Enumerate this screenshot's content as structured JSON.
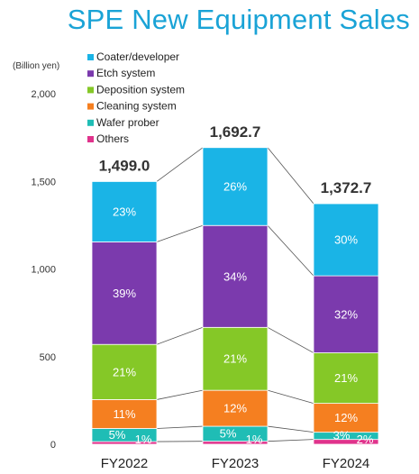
{
  "title": "SPE New Equipment Sales",
  "unit_label": "(Billion yen)",
  "chart_data": {
    "type": "bar",
    "stacked": true,
    "title": "SPE New Equipment Sales",
    "ylabel": "(Billion yen)",
    "ylim": [
      0,
      2000
    ],
    "yticks": [
      "0",
      "500",
      "1,000",
      "1,500",
      "2,000"
    ],
    "categories": [
      "FY2022",
      "FY2023",
      "FY2024"
    ],
    "totals": [
      1499.0,
      1692.7,
      1372.7
    ],
    "total_labels": [
      "1,499.0",
      "1,692.7",
      "1,372.7"
    ],
    "series": [
      {
        "name": "Others",
        "color": "#e0338c",
        "percent": [
          1,
          1,
          2
        ],
        "labels": [
          "1%",
          "1%",
          "2%"
        ]
      },
      {
        "name": "Wafer prober",
        "color": "#1fbdb5",
        "percent": [
          5,
          5,
          3
        ],
        "labels": [
          "5%",
          "5%",
          "3%"
        ]
      },
      {
        "name": "Cleaning system",
        "color": "#f57f20",
        "percent": [
          11,
          12,
          12
        ],
        "labels": [
          "11%",
          "12%",
          "12%"
        ]
      },
      {
        "name": "Deposition system",
        "color": "#85c827",
        "percent": [
          21,
          21,
          21
        ],
        "labels": [
          "21%",
          "21%",
          "21%"
        ]
      },
      {
        "name": "Etch system",
        "color": "#7b3aad",
        "percent": [
          39,
          34,
          32
        ],
        "labels": [
          "39%",
          "34%",
          "32%"
        ]
      },
      {
        "name": "Coater/developer",
        "color": "#1ab4e6",
        "percent": [
          23,
          26,
          30
        ],
        "labels": [
          "23%",
          "26%",
          "30%"
        ]
      }
    ],
    "legend": [
      "Coater/developer",
      "Etch system",
      "Deposition system",
      "Cleaning system",
      "Wafer prober",
      "Others"
    ],
    "legend_position": "top-left",
    "grid": false
  }
}
